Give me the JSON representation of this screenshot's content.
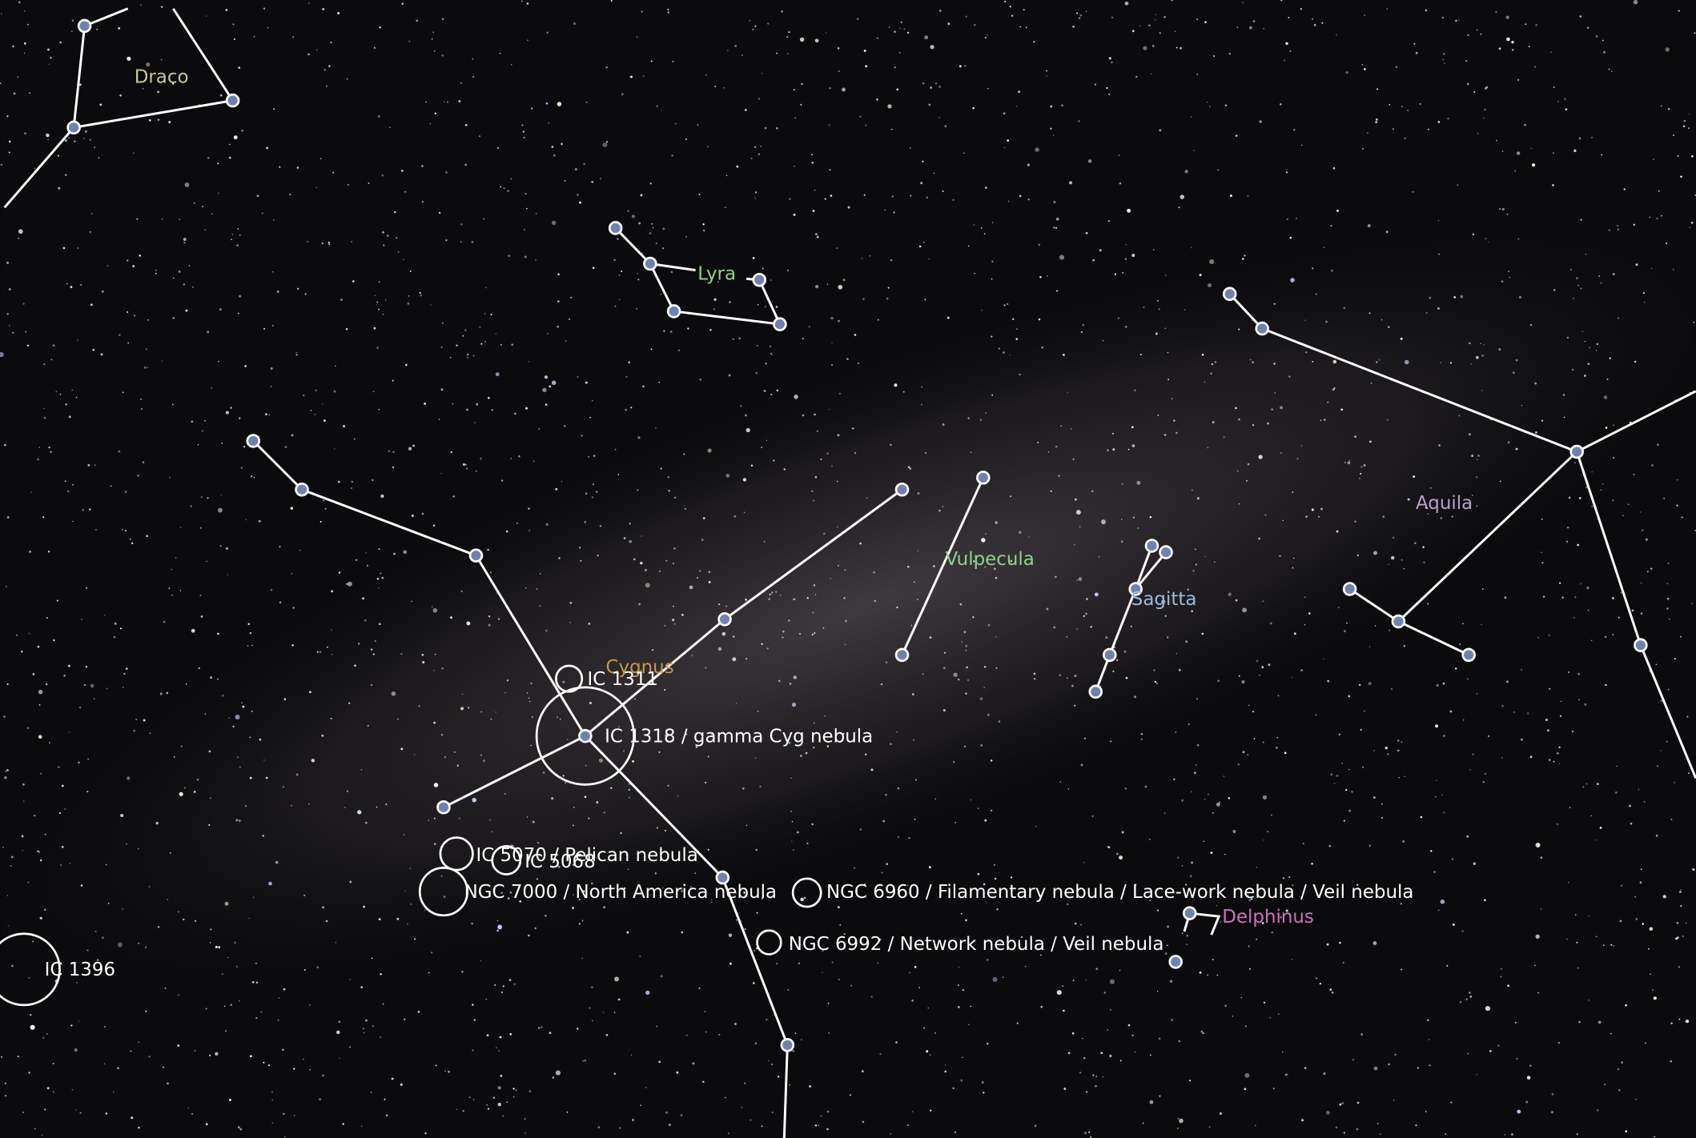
{
  "constellations": [
    "Draco",
    "Lyra",
    "Cygnus",
    "Vulpecula",
    "Sagitta",
    "Aquila",
    "Delphinus"
  ],
  "objects": [
    "IC 1311",
    "IC 1318 / gamma Cyg nebula",
    "IC 5070 / Pelican nebula",
    "IC 5068",
    "NGC 7000 / North America nebula",
    "NGC 6960 / Filamentary nebula / Lace-work nebula / Veil nebula",
    "NGC 6992 / Network nebula / Veil nebula",
    "IC 1396"
  ]
}
